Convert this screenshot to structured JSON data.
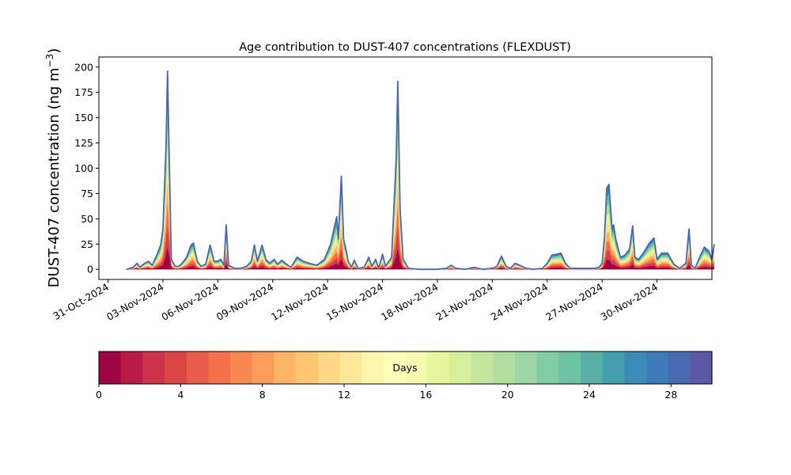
{
  "chart_data": {
    "type": "area",
    "title": "Age contribution to DUST-407 concentrations (FLEXDUST)",
    "ylabel_main": "DUST-407 concentration (ng m",
    "ylabel_sup": "−3",
    "ylabel_close": ")",
    "xlabel": "",
    "ylim": [
      -10,
      210
    ],
    "y_ticks": [
      0,
      25,
      50,
      75,
      100,
      125,
      150,
      175,
      200
    ],
    "x_range": [
      "2024-10-30T12:00",
      "2024-12-03T00:00"
    ],
    "x_ticks": [
      {
        "date": "2024-10-31",
        "label": "31-Oct-2024"
      },
      {
        "date": "2024-11-03",
        "label": "03-Nov-2024"
      },
      {
        "date": "2024-11-06",
        "label": "06-Nov-2024"
      },
      {
        "date": "2024-11-09",
        "label": "09-Nov-2024"
      },
      {
        "date": "2024-11-12",
        "label": "12-Nov-2024"
      },
      {
        "date": "2024-11-15",
        "label": "15-Nov-2024"
      },
      {
        "date": "2024-11-18",
        "label": "18-Nov-2024"
      },
      {
        "date": "2024-11-21",
        "label": "21-Nov-2024"
      },
      {
        "date": "2024-11-24",
        "label": "24-Nov-2024"
      },
      {
        "date": "2024-11-27",
        "label": "27-Nov-2024"
      },
      {
        "date": "2024-11-30",
        "label": "30-Nov-2024"
      }
    ],
    "grid": false,
    "total_series": {
      "name": "total",
      "color": "#4a67b0",
      "points": [
        [
          "2024-11-01T00:00",
          0
        ],
        [
          "2024-11-01T09:00",
          2
        ],
        [
          "2024-11-01T14:00",
          6
        ],
        [
          "2024-11-01T18:00",
          2
        ],
        [
          "2024-11-02T00:00",
          6
        ],
        [
          "2024-11-02T05:00",
          8
        ],
        [
          "2024-11-02T10:00",
          4
        ],
        [
          "2024-11-02T16:00",
          14
        ],
        [
          "2024-11-02T21:00",
          24
        ],
        [
          "2024-11-03T00:00",
          40
        ],
        [
          "2024-11-03T04:00",
          120
        ],
        [
          "2024-11-03T06:00",
          196
        ],
        [
          "2024-11-03T08:00",
          120
        ],
        [
          "2024-11-03T11:00",
          10
        ],
        [
          "2024-11-03T16:00",
          3
        ],
        [
          "2024-11-03T21:00",
          3
        ],
        [
          "2024-11-04T01:00",
          6
        ],
        [
          "2024-11-04T07:00",
          12
        ],
        [
          "2024-11-04T13:00",
          24
        ],
        [
          "2024-11-04T16:00",
          26
        ],
        [
          "2024-11-04T21:00",
          8
        ],
        [
          "2024-11-05T02:00",
          3
        ],
        [
          "2024-11-05T08:00",
          5
        ],
        [
          "2024-11-05T14:00",
          24
        ],
        [
          "2024-11-05T19:00",
          8
        ],
        [
          "2024-11-06T00:00",
          8
        ],
        [
          "2024-11-06T04:00",
          10
        ],
        [
          "2024-11-06T08:00",
          4
        ],
        [
          "2024-11-06T11:00",
          44
        ],
        [
          "2024-11-06T14:00",
          4
        ],
        [
          "2024-11-06T22:00",
          1
        ],
        [
          "2024-11-07T06:00",
          1
        ],
        [
          "2024-11-07T14:00",
          3
        ],
        [
          "2024-11-07T20:00",
          8
        ],
        [
          "2024-11-08T00:00",
          24
        ],
        [
          "2024-11-08T04:00",
          8
        ],
        [
          "2024-11-08T10:00",
          24
        ],
        [
          "2024-11-08T15:00",
          10
        ],
        [
          "2024-11-08T20:00",
          6
        ],
        [
          "2024-11-09T02:00",
          10
        ],
        [
          "2024-11-09T06:00",
          5
        ],
        [
          "2024-11-09T12:00",
          9
        ],
        [
          "2024-11-09T18:00",
          5
        ],
        [
          "2024-11-10T00:00",
          2
        ],
        [
          "2024-11-10T08:00",
          12
        ],
        [
          "2024-11-10T16:00",
          8
        ],
        [
          "2024-11-11T00:00",
          6
        ],
        [
          "2024-11-11T10:00",
          4
        ],
        [
          "2024-11-11T20:00",
          10
        ],
        [
          "2024-11-12T04:00",
          25
        ],
        [
          "2024-11-12T12:00",
          52
        ],
        [
          "2024-11-12T14:00",
          30
        ],
        [
          "2024-11-12T18:00",
          92
        ],
        [
          "2024-11-12T21:00",
          30
        ],
        [
          "2024-11-13T00:00",
          20
        ],
        [
          "2024-11-13T03:00",
          8
        ],
        [
          "2024-11-13T07:00",
          2
        ],
        [
          "2024-11-13T11:00",
          9
        ],
        [
          "2024-11-13T16:00",
          1
        ],
        [
          "2024-11-14T00:00",
          2
        ],
        [
          "2024-11-14T06:00",
          12
        ],
        [
          "2024-11-14T10:00",
          3
        ],
        [
          "2024-11-14T15:00",
          10
        ],
        [
          "2024-11-14T19:00",
          1
        ],
        [
          "2024-11-15T00:00",
          15
        ],
        [
          "2024-11-15T04:00",
          3
        ],
        [
          "2024-11-15T12:00",
          12
        ],
        [
          "2024-11-15T18:00",
          110
        ],
        [
          "2024-11-15T20:00",
          186
        ],
        [
          "2024-11-15T23:00",
          60
        ],
        [
          "2024-11-16T03:00",
          10
        ],
        [
          "2024-11-16T10:00",
          1
        ],
        [
          "2024-11-17T00:00",
          0
        ],
        [
          "2024-11-17T12:00",
          0
        ],
        [
          "2024-11-18T00:00",
          0
        ],
        [
          "2024-11-18T12:00",
          1
        ],
        [
          "2024-11-18T18:00",
          4
        ],
        [
          "2024-11-19T00:00",
          1
        ],
        [
          "2024-11-19T12:00",
          0
        ],
        [
          "2024-11-20T00:00",
          2
        ],
        [
          "2024-11-20T12:00",
          0
        ],
        [
          "2024-11-21T00:00",
          1
        ],
        [
          "2024-11-21T06:00",
          3
        ],
        [
          "2024-11-21T12:00",
          13
        ],
        [
          "2024-11-21T18:00",
          3
        ],
        [
          "2024-11-22T00:00",
          1
        ],
        [
          "2024-11-22T06:00",
          6
        ],
        [
          "2024-11-22T12:00",
          4
        ],
        [
          "2024-11-22T20:00",
          1
        ],
        [
          "2024-11-23T06:00",
          0
        ],
        [
          "2024-11-23T18:00",
          1
        ],
        [
          "2024-11-24T00:00",
          6
        ],
        [
          "2024-11-24T06:00",
          14
        ],
        [
          "2024-11-24T12:00",
          15
        ],
        [
          "2024-11-24T18:00",
          16
        ],
        [
          "2024-11-25T00:00",
          6
        ],
        [
          "2024-11-25T06:00",
          1
        ],
        [
          "2024-11-25T18:00",
          1
        ],
        [
          "2024-11-26T04:00",
          1
        ],
        [
          "2024-11-26T14:00",
          1
        ],
        [
          "2024-11-26T20:00",
          2
        ],
        [
          "2024-11-27T00:00",
          6
        ],
        [
          "2024-11-27T03:00",
          30
        ],
        [
          "2024-11-27T06:00",
          80
        ],
        [
          "2024-11-27T09:00",
          84
        ],
        [
          "2024-11-27T13:00",
          40
        ],
        [
          "2024-11-27T15:00",
          44
        ],
        [
          "2024-11-27T18:00",
          30
        ],
        [
          "2024-11-28T00:00",
          12
        ],
        [
          "2024-11-28T06:00",
          14
        ],
        [
          "2024-11-28T12:00",
          20
        ],
        [
          "2024-11-28T16:00",
          43
        ],
        [
          "2024-11-28T19:00",
          12
        ],
        [
          "2024-11-29T00:00",
          10
        ],
        [
          "2024-11-29T06:00",
          16
        ],
        [
          "2024-11-29T14:00",
          26
        ],
        [
          "2024-11-29T20:00",
          31
        ],
        [
          "2024-11-30T00:00",
          10
        ],
        [
          "2024-11-30T06:00",
          16
        ],
        [
          "2024-11-30T14:00",
          16
        ],
        [
          "2024-11-30T22:00",
          5
        ],
        [
          "2024-12-01T06:00",
          1
        ],
        [
          "2024-12-01T14:00",
          6
        ],
        [
          "2024-12-01T18:00",
          40
        ],
        [
          "2024-12-01T21:00",
          4
        ],
        [
          "2024-12-02T02:00",
          1
        ],
        [
          "2024-12-02T08:00",
          12
        ],
        [
          "2024-12-02T14:00",
          22
        ],
        [
          "2024-12-02T20:00",
          18
        ],
        [
          "2024-12-03T00:00",
          10
        ],
        [
          "2024-12-03T03:00",
          25
        ]
      ]
    },
    "age_bands": [
      {
        "days_from": 0,
        "days_to": 2,
        "color": "#9e0142"
      },
      {
        "days_from": 2,
        "days_to": 5,
        "color": "#d53e4f"
      },
      {
        "days_from": 5,
        "days_to": 8,
        "color": "#f46d43"
      },
      {
        "days_from": 8,
        "days_to": 12,
        "color": "#fdae61"
      },
      {
        "days_from": 12,
        "days_to": 16,
        "color": "#fee08b"
      },
      {
        "days_from": 16,
        "days_to": 20,
        "color": "#e6f598"
      },
      {
        "days_from": 20,
        "days_to": 24,
        "color": "#abdda4"
      },
      {
        "days_from": 24,
        "days_to": 28,
        "color": "#66c2a5"
      },
      {
        "days_from": 28,
        "days_to": 30,
        "color": "#3288bd"
      }
    ],
    "colorbar": {
      "label": "Days",
      "range": [
        0,
        30
      ],
      "ticks": [
        0,
        4,
        8,
        12,
        16,
        20,
        24,
        28
      ],
      "colors": [
        "#a00543",
        "#b81b47",
        "#cf324b",
        "#da4648",
        "#e75d4a",
        "#f2704a",
        "#f78851",
        "#fb9c5b",
        "#fdb468",
        "#fec575",
        "#fed787",
        "#fee798",
        "#fef5ae",
        "#fefeb9",
        "#f5fab0",
        "#e7f59d",
        "#d7ef9b",
        "#c3e69f",
        "#b0de9f",
        "#9cd6a4",
        "#82cca5",
        "#6fc3a5",
        "#5ab0a9",
        "#479ead",
        "#3a8cb6",
        "#3d7cb9",
        "#486ab0",
        "#5b59a6"
      ]
    }
  }
}
